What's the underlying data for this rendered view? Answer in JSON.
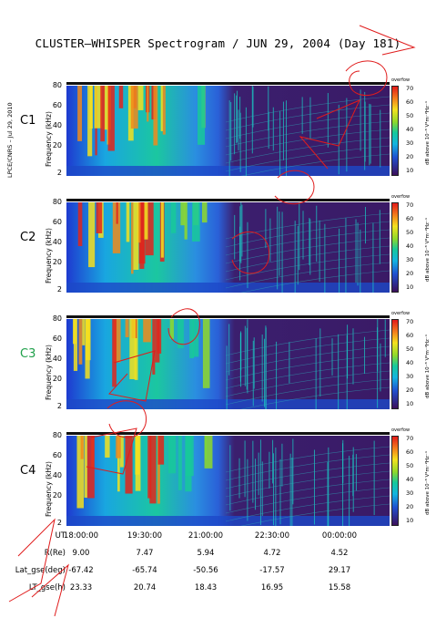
{
  "title": "CLUSTER–WHISPER Spectrogram / JUN 29, 2004 (Day 181)",
  "side_note": "LPCE/CNRS – Jul 29, 2010",
  "colors": {
    "background": "#2f1650",
    "c3_label": "#1fa04a",
    "default_label": "#000000",
    "annotation_red": "#e01c1c"
  },
  "chart_data": [
    {
      "type": "heatmap",
      "spacecraft": "C1",
      "ylabel": "Frequency (kHz)",
      "y_ticks": [
        "80",
        "60",
        "40",
        "20",
        "2"
      ],
      "ylim": [
        2,
        80
      ],
      "colorbar": {
        "label": "dB above 10⁻⁸ V²m⁻²Hz⁻¹",
        "ticks": [
          "70",
          "60",
          "50",
          "40",
          "30",
          "20",
          "10"
        ],
        "range": [
          10,
          70
        ],
        "top_note": "overfow"
      },
      "x_ticks": [
        "18:00:00",
        "19:30:00",
        "21:00:00",
        "22:30:00",
        "00:00:00"
      ]
    },
    {
      "type": "heatmap",
      "spacecraft": "C2",
      "ylabel": "Frequency (kHz)",
      "y_ticks": [
        "80",
        "60",
        "40",
        "20",
        "2"
      ],
      "ylim": [
        2,
        80
      ],
      "colorbar": {
        "label": "dB above 10⁻⁸ V²m⁻²Hz⁻¹",
        "ticks": [
          "70",
          "60",
          "50",
          "40",
          "30",
          "20",
          "10"
        ],
        "range": [
          10,
          70
        ],
        "top_note": "overfow"
      },
      "x_ticks": [
        "18:00:00",
        "19:30:00",
        "21:00:00",
        "22:30:00",
        "00:00:00"
      ]
    },
    {
      "type": "heatmap",
      "spacecraft": "C3",
      "ylabel": "Frequency (kHz)",
      "y_ticks": [
        "80",
        "60",
        "40",
        "20",
        "2"
      ],
      "ylim": [
        2,
        80
      ],
      "colorbar": {
        "label": "dB above 10⁻⁸ V²m⁻²Hz⁻¹",
        "ticks": [
          "70",
          "60",
          "50",
          "40",
          "30",
          "20",
          "10"
        ],
        "range": [
          10,
          70
        ],
        "top_note": "overfow"
      },
      "x_ticks": [
        "18:00:00",
        "19:30:00",
        "21:00:00",
        "22:30:00",
        "00:00:00"
      ]
    },
    {
      "type": "heatmap",
      "spacecraft": "C4",
      "ylabel": "Frequency (kHz)",
      "y_ticks": [
        "80",
        "60",
        "40",
        "20",
        "2"
      ],
      "ylim": [
        2,
        80
      ],
      "colorbar": {
        "label": "dB above 10⁻⁸ V²m⁻²Hz⁻¹",
        "ticks": [
          "70",
          "60",
          "50",
          "40",
          "30",
          "20",
          "10"
        ],
        "range": [
          10,
          70
        ],
        "top_note": "overfow"
      },
      "x_ticks": [
        "18:00:00",
        "19:30:00",
        "21:00:00",
        "22:30:00",
        "00:00:00"
      ]
    }
  ],
  "footer": {
    "rows": [
      {
        "label": "UT",
        "values": [
          "18:00:00",
          "19:30:00",
          "21:00:00",
          "22:30:00",
          "00:00:00"
        ]
      },
      {
        "label": "R(Re)",
        "values": [
          "9.00",
          "7.47",
          "5.94",
          "4.72",
          "4.52"
        ]
      },
      {
        "label": "Lat_gse(deg)",
        "values": [
          "-67.42",
          "-65.74",
          "-50.56",
          "-17.57",
          "29.17"
        ]
      },
      {
        "label": "LT_gse(h)",
        "values": [
          "23.33",
          "20.74",
          "18.43",
          "16.95",
          "15.58"
        ]
      }
    ]
  }
}
